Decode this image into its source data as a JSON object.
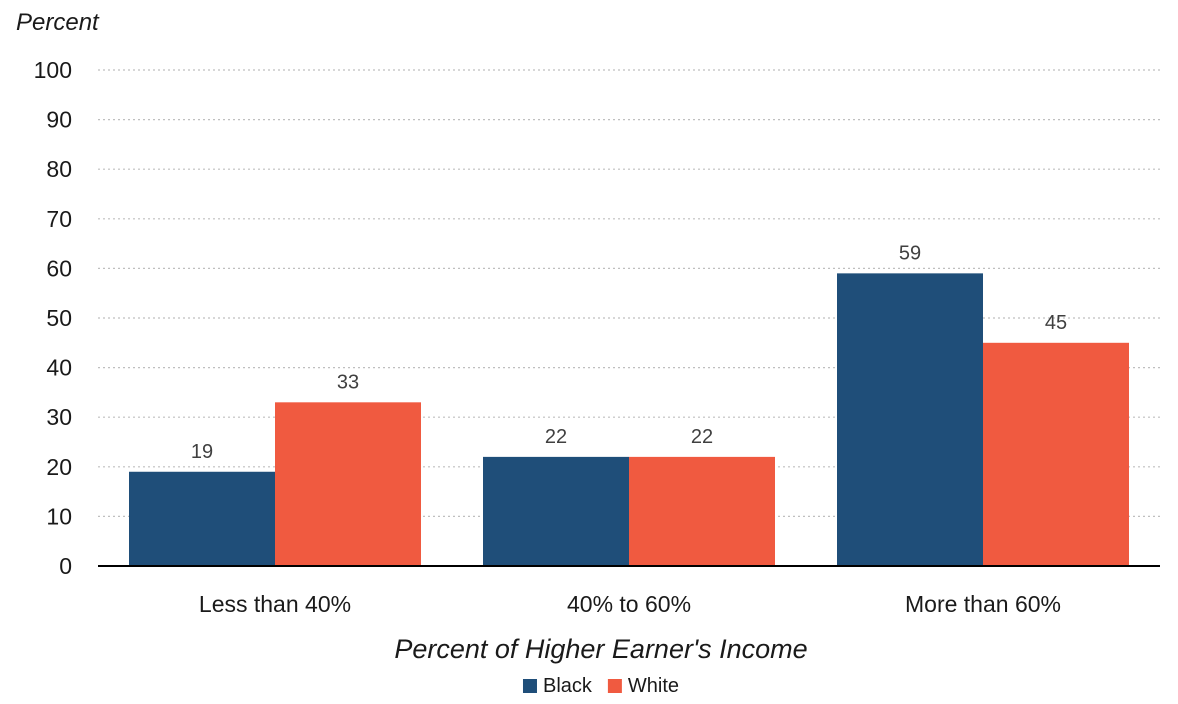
{
  "chart_data": {
    "type": "bar",
    "title": "",
    "ylabel": "Percent",
    "xlabel": "Percent of Higher Earner's Income",
    "categories": [
      "Less than 40%",
      "40% to 60%",
      "More than 60%"
    ],
    "series": [
      {
        "name": "Black",
        "values": [
          19,
          22,
          59
        ],
        "color": "#1f4e79"
      },
      {
        "name": "White",
        "values": [
          33,
          22,
          45
        ],
        "color": "#f05a40"
      }
    ],
    "ylim": [
      0,
      100
    ],
    "yticks": [
      0,
      10,
      20,
      30,
      40,
      50,
      60,
      70,
      80,
      90,
      100
    ],
    "grid": true,
    "legend_position": "bottom"
  }
}
